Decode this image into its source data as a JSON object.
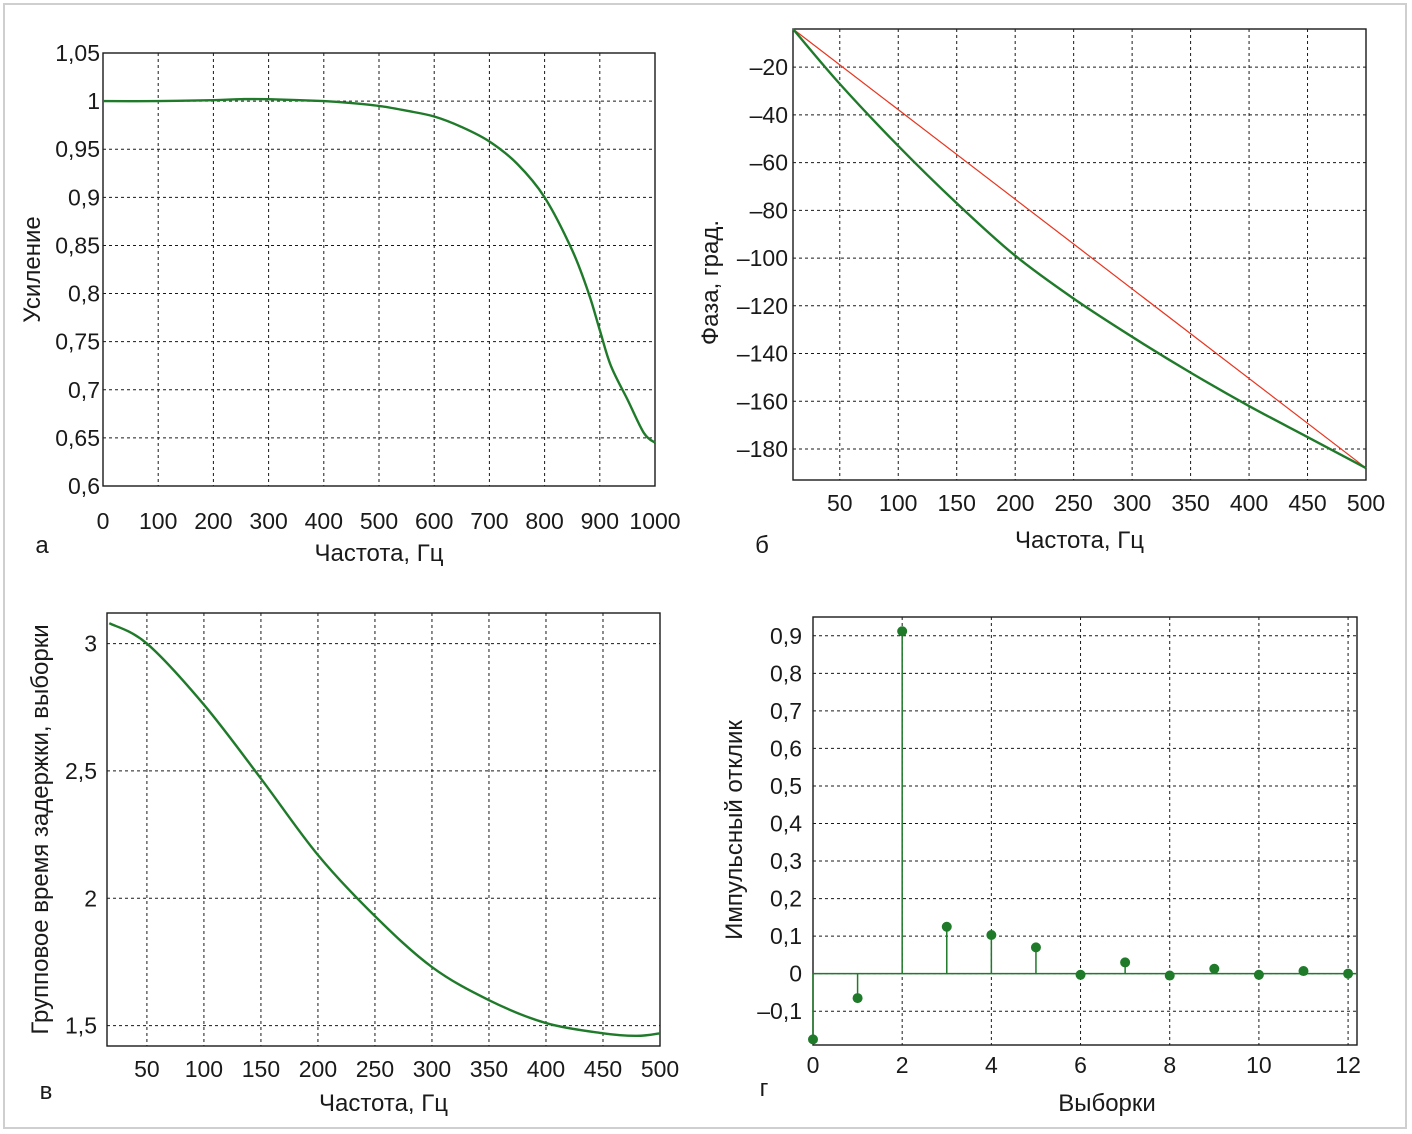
{
  "colors": {
    "series_green": "#1f7a2a",
    "reference_red": "#e8351f",
    "axis": "#1a1a1a",
    "grid": "#1a1a1a"
  },
  "chart_data": [
    {
      "panel_letter": "а",
      "type": "line",
      "xlabel": "Частота, Гц",
      "ylabel": "Усиление",
      "xlim": [
        0,
        1000
      ],
      "ylim": [
        0.6,
        1.05
      ],
      "xticks": [
        0,
        100,
        200,
        300,
        400,
        500,
        600,
        700,
        800,
        900,
        1000
      ],
      "xtick_labels": [
        "0",
        "100",
        "200",
        "300",
        "400",
        "500",
        "600",
        "700",
        "800",
        "900",
        "1000"
      ],
      "yticks": [
        0.6,
        0.65,
        0.7,
        0.75,
        0.8,
        0.85,
        0.9,
        0.95,
        1.0,
        1.05
      ],
      "ytick_labels": [
        "0,6",
        "0,65",
        "0,7",
        "0,75",
        "0,8",
        "0,85",
        "0,9",
        "0,95",
        "1",
        "1,05"
      ],
      "grid": true,
      "series": [
        {
          "color": "#1f7a2a",
          "x": [
            0,
            100,
            200,
            250,
            300,
            400,
            450,
            500,
            550,
            600,
            650,
            700,
            750,
            800,
            850,
            880,
            900,
            920,
            950,
            980,
            1000
          ],
          "y": [
            1.0,
            1.0,
            1.001,
            1.002,
            1.002,
            1.0,
            0.998,
            0.995,
            0.99,
            0.984,
            0.973,
            0.958,
            0.935,
            0.9,
            0.845,
            0.8,
            0.762,
            0.725,
            0.69,
            0.655,
            0.645
          ]
        }
      ]
    },
    {
      "panel_letter": "б",
      "type": "line",
      "xlabel": "Частота, Гц",
      "ylabel": "Фаза, град.",
      "xlim": [
        10,
        500
      ],
      "ylim": [
        -193,
        -4
      ],
      "xticks": [
        50,
        100,
        150,
        200,
        250,
        300,
        350,
        400,
        450,
        500
      ],
      "xtick_labels": [
        "50",
        "100",
        "150",
        "200",
        "250",
        "300",
        "350",
        "400",
        "450",
        "500"
      ],
      "yticks": [
        -20,
        -40,
        -60,
        -80,
        -100,
        -120,
        -140,
        -160,
        -180
      ],
      "ytick_labels": [
        "–20",
        "–40",
        "–60",
        "–80",
        "–100",
        "–120",
        "–140",
        "–160",
        "–180"
      ],
      "grid": true,
      "series": [
        {
          "color": "#e8351f",
          "x": [
            10,
            500
          ],
          "y": [
            -4,
            -188
          ]
        },
        {
          "color": "#1f7a2a",
          "x": [
            10,
            50,
            100,
            150,
            200,
            250,
            300,
            350,
            400,
            450,
            500
          ],
          "y": [
            -4,
            -27,
            -53,
            -77,
            -99,
            -117,
            -133,
            -148,
            -162,
            -175,
            -188
          ]
        }
      ]
    },
    {
      "panel_letter": "в",
      "type": "line",
      "xlabel": "Частота, Гц",
      "ylabel": "Групповое время задержки, выборки",
      "xlim": [
        15,
        500
      ],
      "ylim": [
        1.42,
        3.12
      ],
      "xticks": [
        50,
        100,
        150,
        200,
        250,
        300,
        350,
        400,
        450,
        500
      ],
      "xtick_labels": [
        "50",
        "100",
        "150",
        "200",
        "250",
        "300",
        "350",
        "400",
        "450",
        "500"
      ],
      "yticks": [
        1.5,
        2,
        2.5,
        3
      ],
      "ytick_labels": [
        "1,5",
        "2",
        "2,5",
        "3"
      ],
      "grid": true,
      "series": [
        {
          "color": "#1f7a2a",
          "x": [
            17,
            50,
            100,
            150,
            200,
            250,
            300,
            350,
            400,
            450,
            480,
            500
          ],
          "y": [
            3.08,
            3.0,
            2.76,
            2.47,
            2.17,
            1.93,
            1.73,
            1.6,
            1.51,
            1.47,
            1.46,
            1.47
          ]
        }
      ]
    },
    {
      "panel_letter": "г",
      "type": "scatter",
      "style": "stem",
      "xlabel": "Выборки",
      "ylabel": "Импульсный отклик",
      "xlim": [
        0,
        12.2
      ],
      "ylim": [
        -0.19,
        0.95
      ],
      "xticks": [
        0,
        2,
        4,
        6,
        8,
        10,
        12
      ],
      "xtick_labels": [
        "0",
        "2",
        "4",
        "6",
        "8",
        "10",
        "12"
      ],
      "yticks": [
        -0.1,
        0,
        0.1,
        0.2,
        0.3,
        0.4,
        0.5,
        0.6,
        0.7,
        0.8,
        0.9
      ],
      "ytick_labels": [
        "–0,1",
        "0",
        "0,1",
        "0,2",
        "0,3",
        "0,4",
        "0,5",
        "0,6",
        "0,7",
        "0,8",
        "0,9"
      ],
      "grid": true,
      "series": [
        {
          "color": "#1f7a2a",
          "x": [
            0,
            1,
            2,
            3,
            4,
            5,
            6,
            7,
            8,
            9,
            10,
            11,
            12
          ],
          "y": [
            -0.175,
            -0.065,
            0.912,
            0.125,
            0.103,
            0.07,
            -0.003,
            0.03,
            -0.005,
            0.013,
            -0.003,
            0.007,
            0.0
          ]
        }
      ]
    }
  ]
}
